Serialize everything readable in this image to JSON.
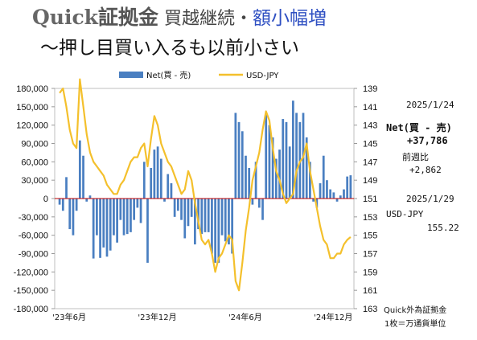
{
  "header": {
    "title_brand": "Quick",
    "title_kin": "証拠金",
    "title_mid": " 買越継続・",
    "title_blue": "額小幅増",
    "subtitle": "〜押し目買い入るも以前小さい"
  },
  "side_panel": {
    "date1": "2025/1/24",
    "net_label": "Net(買 - 売)",
    "net_value": "+37,786",
    "wow_label": "前週比",
    "wow_value": "+2,862",
    "date2": "2025/1/29",
    "pair_label": "USD-JPY",
    "pair_value": "155.22",
    "note1": "Quick外為証拠金",
    "note2": "1枚＝万通貨単位"
  },
  "chart_data": {
    "type": "bar+line",
    "legend": [
      "Net(買 - 売)",
      "USD-JPY"
    ],
    "legend_position": "top",
    "y_left": {
      "min": -180000,
      "max": 180000,
      "ticks": [
        "180,000",
        "150,000",
        "120,000",
        "90,000",
        "60,000",
        "30,000",
        "0",
        "-30,000",
        "-60,000",
        "-90,000",
        "-120,000",
        "-150,000",
        "-180,000"
      ]
    },
    "y_right": {
      "min": 139,
      "max": 163,
      "inverted": true,
      "ticks": [
        "139",
        "141",
        "143",
        "145",
        "147",
        "149",
        "151",
        "153",
        "155",
        "157",
        "159",
        "161",
        "163"
      ]
    },
    "x_tick_labels": [
      {
        "label": "'23年6月",
        "index": 0
      },
      {
        "label": "'23年12月",
        "index": 26
      },
      {
        "label": "'24年6月",
        "index": 52
      },
      {
        "label": "'24年12月",
        "index": 78
      }
    ],
    "colors": {
      "bars": "#4a7fc1",
      "line": "#f4c02c",
      "zero": "#c00000"
    },
    "series": [
      {
        "name": "Net(買 - 売)",
        "values": [
          -10000,
          -20000,
          35000,
          -50000,
          -60000,
          -20000,
          95000,
          70000,
          -5000,
          5000,
          -98000,
          -60000,
          -97000,
          -80000,
          -95000,
          -85000,
          -60000,
          -72000,
          -35000,
          -60000,
          -58000,
          -55000,
          -35000,
          -15000,
          -40000,
          60000,
          -105000,
          50000,
          80000,
          85000,
          65000,
          -5000,
          40000,
          25000,
          -30000,
          -20000,
          -35000,
          -65000,
          -45000,
          -30000,
          -75000,
          -50000,
          -58000,
          -55000,
          -55000,
          -90000,
          -105000,
          -105000,
          -60000,
          -70000,
          -75000,
          -90000,
          140000,
          125000,
          110000,
          70000,
          50000,
          -10000,
          60000,
          -15000,
          -35000,
          140000,
          120000,
          100000,
          65000,
          80000,
          130000,
          125000,
          85000,
          160000,
          140000,
          125000,
          140000,
          100000,
          60000,
          -5000,
          -15000,
          25000,
          70000,
          30000,
          15000,
          10000,
          -5000,
          5000,
          15000,
          36000,
          38000
        ]
      },
      {
        "name": "USD-JPY",
        "values": [
          139.5,
          139.0,
          141.0,
          143.5,
          145.0,
          145.5,
          138.0,
          141.0,
          144.0,
          146.0,
          147.0,
          147.5,
          148.0,
          148.5,
          149.5,
          150.0,
          150.5,
          150.5,
          149.5,
          149.0,
          148.0,
          147.0,
          146.5,
          146.5,
          145.5,
          145.0,
          147.5,
          144.5,
          142.0,
          143.0,
          145.0,
          146.0,
          147.0,
          147.5,
          148.5,
          149.5,
          150.5,
          150.0,
          148.0,
          149.0,
          151.5,
          153.5,
          155.5,
          156.0,
          155.5,
          157.0,
          159.0,
          157.5,
          157.0,
          156.0,
          155.0,
          155.5,
          160.0,
          161.0,
          158.0,
          154.5,
          152.0,
          149.0,
          147.5,
          146.0,
          143.5,
          141.5,
          142.5,
          145.5,
          148.0,
          149.0,
          150.5,
          151.5,
          151.0,
          150.5,
          148.0,
          147.0,
          146.5,
          145.0,
          148.0,
          150.0,
          152.0,
          154.0,
          155.5,
          156.0,
          157.5,
          157.5,
          157.0,
          157.0,
          156.0,
          155.5,
          155.2
        ]
      }
    ]
  }
}
